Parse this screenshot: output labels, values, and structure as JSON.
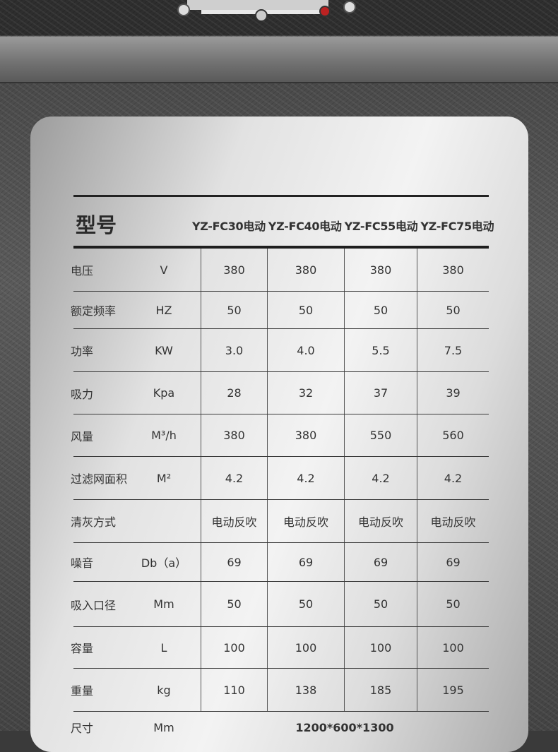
{
  "table": {
    "title": "型号",
    "models": [
      "YZ-FC30电动",
      "YZ-FC40电动",
      "YZ-FC55电动",
      "YZ-FC75电动"
    ],
    "rows": [
      {
        "label": "电压",
        "unit": "V",
        "values": [
          "380",
          "380",
          "380",
          "380"
        ]
      },
      {
        "label": "额定频率",
        "unit": "HZ",
        "values": [
          "50",
          "50",
          "50",
          "50"
        ]
      },
      {
        "label": "功率",
        "unit": "KW",
        "values": [
          "3.0",
          "4.0",
          "5.5",
          "7.5"
        ]
      },
      {
        "label": "吸力",
        "unit": "Kpa",
        "values": [
          "28",
          "32",
          "37",
          "39"
        ]
      },
      {
        "label": "风量",
        "unit": "M³/h",
        "values": [
          "380",
          "380",
          "550",
          "560"
        ]
      },
      {
        "label": "过滤网面积",
        "unit": "M²",
        "values": [
          "4.2",
          "4.2",
          "4.2",
          "4.2"
        ]
      },
      {
        "label": "清灰方式",
        "unit": "",
        "values": [
          "电动反吹",
          "电动反吹",
          "电动反吹",
          "电动反吹"
        ]
      },
      {
        "label": "噪音",
        "unit": "Db（a）",
        "values": [
          "69",
          "69",
          "69",
          "69"
        ]
      },
      {
        "label": "吸入口径",
        "unit": "Mm",
        "values": [
          "50",
          "50",
          "50",
          "50"
        ]
      },
      {
        "label": "容量",
        "unit": "L",
        "values": [
          "100",
          "100",
          "100",
          "100"
        ]
      },
      {
        "label": "重量",
        "unit": "kg",
        "values": [
          "110",
          "138",
          "185",
          "195"
        ]
      }
    ],
    "size": {
      "label": "尺寸",
      "unit": "Mm",
      "value": "1200*600*1300"
    }
  }
}
